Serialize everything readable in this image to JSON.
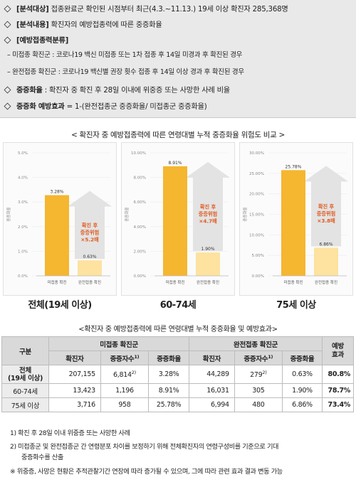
{
  "header": {
    "line1_label": "[분석대상]",
    "line1_text": " 접종완료군 확인된 시점부터 최근(4.3.~11.13.) 19세 이상 확진자 285,368명",
    "line2_label": "[분석내용]",
    "line2_text": " 확진자의 예방접종력에 따른 중증화율",
    "line3_label": "[예방접종력분류]",
    "sub1": "– 미접종 확진군 : 코로나19 백신 미접종 또는 1차 접종 후 14일 미경과 후 확진된 경우",
    "sub2": "– 완전접종 확진군 : 코로나19 백신별 권장 횟수 접종 후 14일 이상 경과 후 확진된 경우",
    "line4_label": "중증화율",
    "line4_text": " : 확진자 중 확진 후 28일 이내에 위중증 또는 사망한 사례 비율",
    "line5_label": "중증화 예방효과",
    "line5_text": " = 1-(완전접종군 중증화율/ 미접종군 중증화율)"
  },
  "chart_section_title": "< 확진자 중 예방접종력에 따른 연령대별 누적 중증화율 위험도 비교 >",
  "chart_data": [
    {
      "type": "bar",
      "label": "전체(19세 이상)",
      "ylabel": "중증화율",
      "yticks": [
        "0.0%",
        "1.0%",
        "2.0%",
        "3.0%",
        "4.0%",
        "5.0%"
      ],
      "ylim": [
        0,
        5
      ],
      "categories": [
        "미접종 확진",
        "완전접종 확진"
      ],
      "values": [
        3.28,
        0.63
      ],
      "value_labels": [
        "3.28%",
        "0.63%"
      ],
      "arrow_text": [
        "확진 후",
        "중증위험",
        "×5.2배"
      ]
    },
    {
      "type": "bar",
      "label": "60-74세",
      "ylabel": "중증화율",
      "yticks": [
        "0.00%",
        "2.00%",
        "4.00%",
        "6.00%",
        "8.00%",
        "10.00%"
      ],
      "ylim": [
        0,
        10
      ],
      "categories": [
        "미접종 확진",
        "완전접종 확진"
      ],
      "values": [
        8.91,
        1.9
      ],
      "value_labels": [
        "8.91%",
        "1.90%"
      ],
      "arrow_text": [
        "확진 후",
        "중증위험",
        "×4.7배"
      ]
    },
    {
      "type": "bar",
      "label": "75세 이상",
      "ylabel": "중증화율",
      "yticks": [
        "0.00%",
        "5.00%",
        "10.00%",
        "15.00%",
        "20.00%",
        "25.00%",
        "30.00%"
      ],
      "ylim": [
        0,
        30
      ],
      "categories": [
        "미접종 확진",
        "완전접종 확진"
      ],
      "values": [
        25.78,
        6.86
      ],
      "value_labels": [
        "25.78%",
        "6.86%"
      ],
      "arrow_text": [
        "확진 후",
        "중증위험",
        "×3.8배"
      ]
    }
  ],
  "colors": {
    "bar_unvax": "#f5b630",
    "bar_vax": "#fde2a0",
    "arrow": "#e3e3e3",
    "arrow_text": "#e05a1e"
  },
  "table_section_title": "<확진자 중 예방접종력에 따른 연령대별 누적 중증화율 및 예방효과>",
  "table": {
    "h_group": "구분",
    "h_unvax": "미접종 확진군",
    "h_vax": "완전접종 확진군",
    "h_eff": "예방\n효과",
    "h_cases": "확진자",
    "h_severe": "중증자수",
    "h_rate": "중증화율",
    "rows": [
      {
        "group": "전체\n(19세 이상)",
        "u_cases": "207,155",
        "u_severe": "6,814",
        "u_sup": "2)",
        "u_rate": "3.28%",
        "v_cases": "44,289",
        "v_severe": "279",
        "v_sup": "2)",
        "v_rate": "0.63%",
        "eff": "80.8%"
      },
      {
        "group": "60-74세",
        "u_cases": "13,423",
        "u_severe": "1,196",
        "u_sup": "",
        "u_rate": "8.91%",
        "v_cases": "16,031",
        "v_severe": "305",
        "v_sup": "",
        "v_rate": "1.90%",
        "eff": "78.7%"
      },
      {
        "group": "75세 이상",
        "u_cases": "3,716",
        "u_severe": "958",
        "u_sup": "",
        "u_rate": "25.78%",
        "v_cases": "6,994",
        "v_severe": "480",
        "v_sup": "",
        "v_rate": "6.86%",
        "eff": "73.4%"
      }
    ]
  },
  "notes": {
    "n1": "1) 확진 후 28일 이내 위중증 또는 사망한 사례",
    "n2": "2) 미접종군 및 완전접종군 간 연령분포 차이를 보정하기 위해 전체확진자의 연령구성비를 기준으로 기대",
    "n2b": "중증화수를 산출",
    "n3": "※ 위중증, 사망은 현황은 추적관찰기간 연장에 따라 증가될 수 있으며, 그에 따라 관련 효과 결과 변동 가능"
  }
}
